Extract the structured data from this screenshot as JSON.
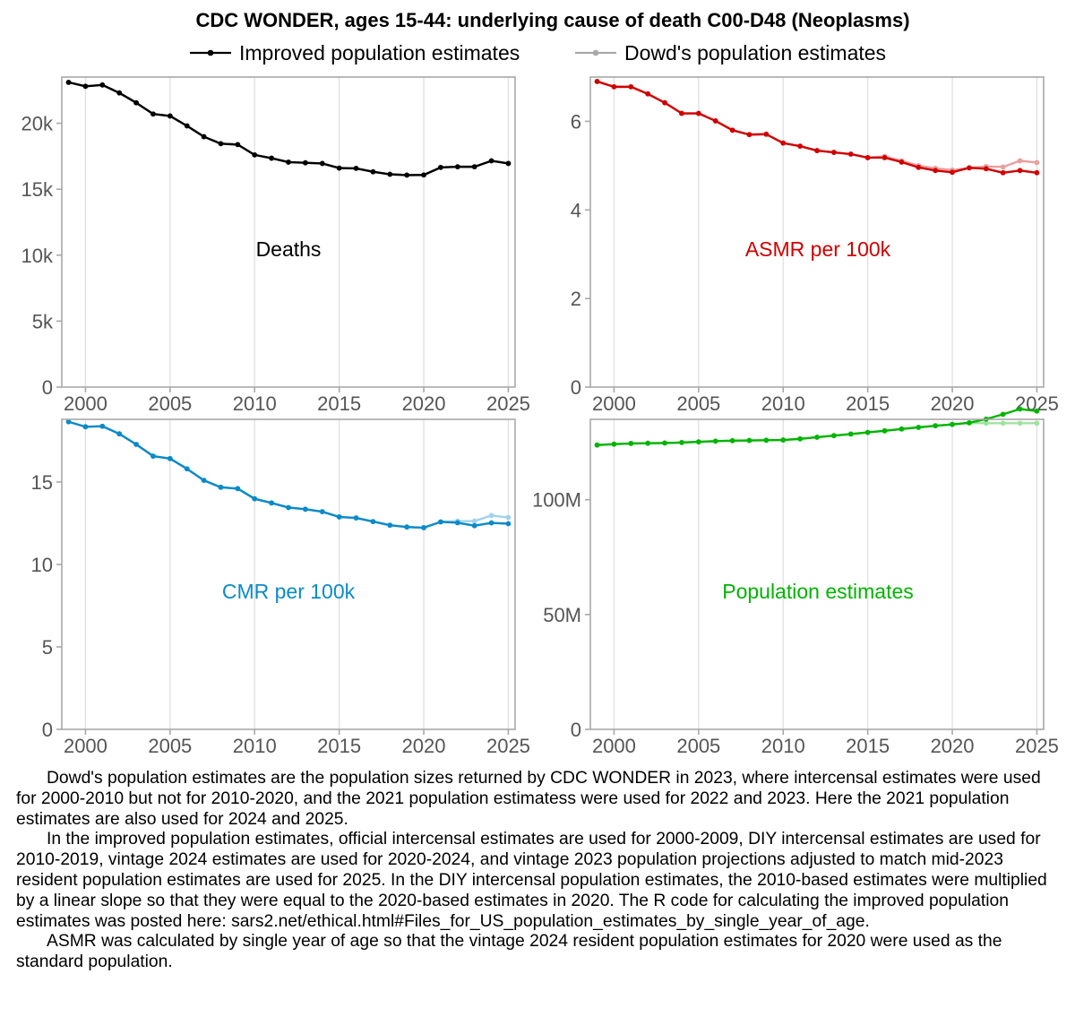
{
  "chart_data": {
    "type": "line",
    "title": "CDC WONDER, ages 15-44: underlying cause of death C00-D48 (Neoplasms)",
    "legend": [
      {
        "name": "Improved population estimates",
        "style": "solid"
      },
      {
        "name": "Dowd's population estimates",
        "style": "faded"
      }
    ],
    "x": [
      1999,
      2000,
      2001,
      2002,
      2003,
      2004,
      2005,
      2006,
      2007,
      2008,
      2009,
      2010,
      2011,
      2012,
      2013,
      2014,
      2015,
      2016,
      2017,
      2018,
      2019,
      2020,
      2021,
      2022,
      2023,
      2024,
      2025
    ],
    "x_ticks": [
      2000,
      2005,
      2010,
      2015,
      2020,
      2025
    ],
    "panels": [
      {
        "label": "Deaths",
        "color": "#000000",
        "ylim": [
          0,
          23500
        ],
        "y_ticks": [
          0,
          5000,
          10000,
          15000,
          20000
        ],
        "y_tick_labels": [
          "0",
          "5k",
          "10k",
          "15k",
          "20k"
        ],
        "series": [
          {
            "name": "Improved population estimates",
            "values": [
              23100,
              22800,
              22900,
              22300,
              21550,
              20700,
              20550,
              19800,
              18980,
              18450,
              18380,
              17600,
              17350,
              17050,
              17000,
              16950,
              16600,
              16580,
              16320,
              16130,
              16070,
              16080,
              16650,
              16700,
              16700,
              17150,
              16950
            ]
          },
          {
            "name": "Dowd's population estimates",
            "values": [
              23100,
              22800,
              22900,
              22300,
              21550,
              20700,
              20550,
              19800,
              18980,
              18450,
              18380,
              17600,
              17350,
              17050,
              17000,
              16950,
              16600,
              16580,
              16320,
              16130,
              16070,
              16080,
              16650,
              16700,
              16700,
              17150,
              16950
            ]
          }
        ]
      },
      {
        "label": "ASMR per 100k",
        "color": "#d00000",
        "ylim": [
          0,
          7.0
        ],
        "y_ticks": [
          0,
          2,
          4,
          6
        ],
        "y_tick_labels": [
          "0",
          "2",
          "4",
          "6"
        ],
        "series": [
          {
            "name": "Improved population estimates",
            "values": [
              6.9,
              6.78,
              6.78,
              6.62,
              6.42,
              6.18,
              6.18,
              6.01,
              5.8,
              5.7,
              5.71,
              5.51,
              5.44,
              5.34,
              5.3,
              5.26,
              5.18,
              5.18,
              5.08,
              4.96,
              4.89,
              4.85,
              4.95,
              4.93,
              4.84,
              4.89,
              4.84
            ]
          },
          {
            "name": "Dowd's population estimates",
            "values": [
              6.9,
              6.78,
              6.78,
              6.62,
              6.42,
              6.18,
              6.18,
              6.01,
              5.8,
              5.7,
              5.71,
              5.51,
              5.44,
              5.34,
              5.3,
              5.26,
              5.18,
              5.21,
              5.11,
              5.0,
              4.94,
              4.9,
              4.95,
              4.98,
              4.97,
              5.11,
              5.07
            ]
          }
        ]
      },
      {
        "label": "CMR per 100k",
        "color": "#0a8ac8",
        "ylim": [
          0,
          18.8
        ],
        "y_ticks": [
          0,
          5,
          10,
          15
        ],
        "y_tick_labels": [
          "0",
          "5",
          "10",
          "15"
        ],
        "series": [
          {
            "name": "Improved population estimates",
            "values": [
              18.65,
              18.35,
              18.38,
              17.92,
              17.28,
              16.57,
              16.42,
              15.8,
              15.1,
              14.68,
              14.6,
              13.98,
              13.73,
              13.45,
              13.35,
              13.2,
              12.88,
              12.82,
              12.6,
              12.38,
              12.27,
              12.23,
              12.58,
              12.53,
              12.35,
              12.52,
              12.47
            ]
          },
          {
            "name": "Dowd's population estimates",
            "values": [
              18.65,
              18.35,
              18.38,
              17.92,
              17.28,
              16.57,
              16.42,
              15.8,
              15.1,
              14.68,
              14.6,
              13.98,
              13.73,
              13.45,
              13.35,
              13.2,
              12.88,
              12.82,
              12.6,
              12.38,
              12.27,
              12.23,
              12.58,
              12.63,
              12.63,
              12.97,
              12.85
            ]
          }
        ]
      },
      {
        "label": "Population estimates",
        "color": "#00b400",
        "ylim": [
          0,
          135000000
        ],
        "y_ticks": [
          0,
          50000000,
          100000000
        ],
        "y_tick_labels": [
          "0",
          "50M",
          "100M"
        ],
        "series": [
          {
            "name": "Improved population estimates",
            "values": [
              123800000,
              124200000,
              124500000,
              124600000,
              124700000,
              124900000,
              125200000,
              125500000,
              125700000,
              125800000,
              125900000,
              126000000,
              126500000,
              127200000,
              127900000,
              128600000,
              129300000,
              130000000,
              130800000,
              131500000,
              132200000,
              132800000,
              133500000,
              135100000,
              137200000,
              139500000,
              138600000
            ]
          },
          {
            "name": "Dowd's population estimates",
            "values": [
              123800000,
              124200000,
              124500000,
              124600000,
              124700000,
              124900000,
              125200000,
              125500000,
              125700000,
              125800000,
              125900000,
              126000000,
              126500000,
              127200000,
              127900000,
              128600000,
              129300000,
              130000000,
              130800000,
              131500000,
              132200000,
              132800000,
              133400000,
              133300000,
              133300000,
              133300000,
              133300000
            ]
          }
        ]
      }
    ]
  },
  "caption": [
    "Dowd's population estimates are the population sizes returned by CDC WONDER in 2023, where intercensal estimates were used for 2000-2010 but not for 2010-2020, and the 2021 population estimatess were used for 2022 and 2023. Here the 2021 population estimates are also used for 2024 and 2025.",
    "In the improved population estimates, official intercensal estimates are used for 2000-2009, DIY intercensal estimates are used for 2010-2019, vintage 2024 estimates are used for 2020-2024, and vintage 2023 population projections adjusted to match mid-2023 resident population estimates are used for 2025. In the DIY intercensal population estimates, the 2010-based estimates were multiplied by a linear slope so that they were equal to the 2020-based estimates in 2020. The R code for calculating the improved population estimates was posted here: sars2.net/ethical.html#Files_for_US_population_estimates_by_single_year_of_age.",
    "ASMR was calculated by single year of age so that the vintage 2024 resident population estimates for 2020 were used as the standard population."
  ]
}
